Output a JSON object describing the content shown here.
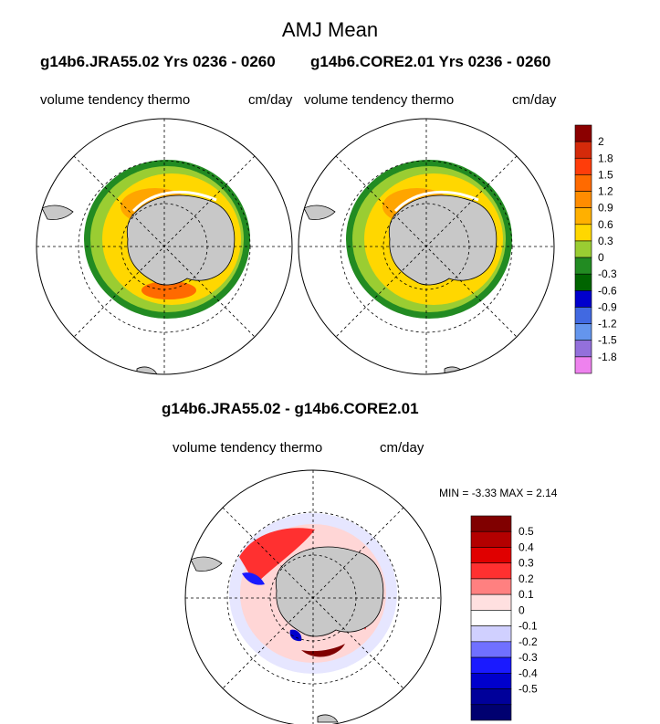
{
  "main_title": "AMJ Mean",
  "panel_left": {
    "title": "g14b6.JRA55.02  Yrs 0236 - 0260",
    "variable": "volume tendency thermo",
    "units": "cm/day"
  },
  "panel_right": {
    "title": "g14b6.CORE2.01  Yrs 0236 - 0260",
    "variable": "volume tendency thermo",
    "units": "cm/day"
  },
  "panel_diff": {
    "title": "g14b6.JRA55.02 - g14b6.CORE2.01",
    "variable": "volume tendency thermo",
    "units": "cm/day",
    "min_label": "MIN =",
    "min_value": "-3.33",
    "max_label": "MAX =",
    "max_value": "2.14"
  },
  "colorbar_top": {
    "ticks": [
      "2",
      "1.8",
      "1.5",
      "1.2",
      "0.9",
      "0.6",
      "0.3",
      "0",
      "-0.3",
      "-0.6",
      "-0.9",
      "-1.2",
      "-1.5",
      "-1.8"
    ],
    "colors": [
      "#8b0000",
      "#d42a0a",
      "#ff3d0a",
      "#ff6a00",
      "#ff8c00",
      "#ffb000",
      "#ffd700",
      "#9acd32",
      "#228b22",
      "#006400",
      "#0000cd",
      "#4169e1",
      "#6495ed",
      "#9370db",
      "#ee82ee"
    ]
  },
  "colorbar_diff": {
    "ticks": [
      "0.5",
      "0.4",
      "0.3",
      "0.2",
      "0.1",
      "0",
      "-0.1",
      "-0.2",
      "-0.3",
      "-0.4",
      "-0.5"
    ],
    "colors": [
      "#800000",
      "#b30000",
      "#e00000",
      "#ff3030",
      "#ff8080",
      "#ffe0e0",
      "#ffffff",
      "#d0d0ff",
      "#7070ff",
      "#1a1aff",
      "#0000cc",
      "#00009a",
      "#000070"
    ]
  },
  "map_colors": {
    "land": "#c8c8c8",
    "ice_edge": "#ffffff",
    "band_outer": "#228b22",
    "band_mid": "#9acd32",
    "band_inner": "#ffd700",
    "band_core": "#ffa500",
    "diff_pos": "#ff8080",
    "diff_strong_pos": "#e00000",
    "diff_neg": "#d0d0ff",
    "diff_strong_neg": "#1a1aff"
  }
}
